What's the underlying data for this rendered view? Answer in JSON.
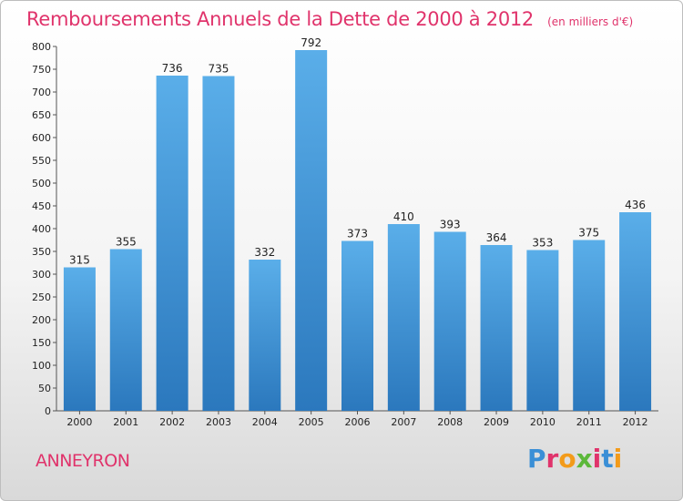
{
  "title": "Remboursements Annuels de la Dette de 2000 à 2012",
  "subtitle": "(en milliers d'€)",
  "city": "ANNEYRON",
  "logo_text": "Proxiti",
  "colors": {
    "title": "#e0336b",
    "bar_top": "#5aaee9",
    "bar_bottom": "#2b78bd",
    "logo": [
      "#3a8fd6",
      "#e0336b",
      "#f39b1a",
      "#5cb83a",
      "#e0336b",
      "#3a8fd6",
      "#f39b1a"
    ]
  },
  "chart_data": {
    "type": "bar",
    "title": "Remboursements Annuels de la Dette de 2000 à 2012",
    "subtitle": "(en milliers d'€)",
    "categories": [
      "2000",
      "2001",
      "2002",
      "2003",
      "2004",
      "2005",
      "2006",
      "2007",
      "2008",
      "2009",
      "2010",
      "2011",
      "2012"
    ],
    "values": [
      315,
      355,
      736,
      735,
      332,
      792,
      373,
      410,
      393,
      364,
      353,
      375,
      436
    ],
    "ylim": [
      0,
      800
    ],
    "yticks": [
      0,
      50,
      100,
      150,
      200,
      250,
      300,
      350,
      400,
      450,
      500,
      550,
      600,
      650,
      700,
      750,
      800
    ],
    "grid": false,
    "legend": "none"
  }
}
